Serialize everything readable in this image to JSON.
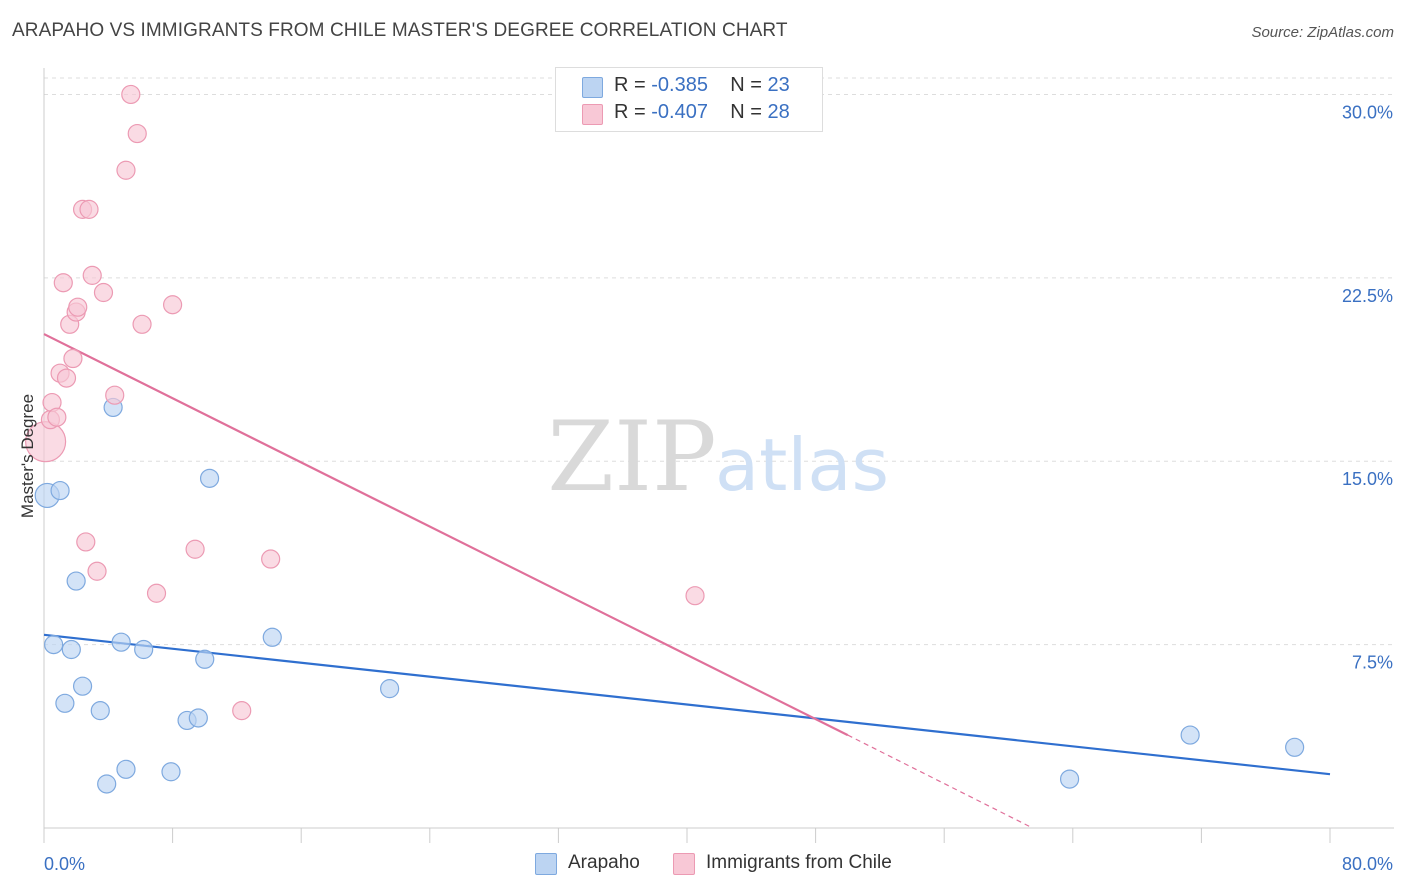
{
  "title": "ARAPAHO VS IMMIGRANTS FROM CHILE MASTER'S DEGREE CORRELATION CHART",
  "source": "Source: ZipAtlas.com",
  "watermark": {
    "zip": "ZIP",
    "atlas": "atlas"
  },
  "legend_top": [
    {
      "r_label": "R = ",
      "r_value": "-0.385",
      "n_label": "N = ",
      "n_value": "23"
    },
    {
      "r_label": "R = ",
      "r_value": "-0.407",
      "n_label": "N = ",
      "n_value": "28"
    }
  ],
  "legend_bottom": [
    "Arapaho",
    "Immigrants from Chile"
  ],
  "colors": {
    "arapaho_fill": "#bcd4f2",
    "arapaho_stroke": "#7ea9df",
    "arapaho_line": "#2f6fcf",
    "chile_fill": "#f8c8d6",
    "chile_stroke": "#ec9ab3",
    "chile_line": "#e0709a",
    "axis_text": "#3a70c2",
    "grid": "#dddddd"
  },
  "chart_data": {
    "type": "scatter",
    "title": "ARAPAHO VS IMMIGRANTS FROM CHILE MASTER'S DEGREE CORRELATION CHART",
    "xlabel": "",
    "ylabel": "Master's Degree",
    "xlim": [
      0,
      80
    ],
    "ylim": [
      0,
      31
    ],
    "x_tick_labels": [
      "0.0%",
      "80.0%"
    ],
    "y_ticks": [
      7.5,
      15.0,
      22.5,
      30.0
    ],
    "y_tick_labels": [
      "7.5%",
      "15.0%",
      "22.5%",
      "30.0%"
    ],
    "grid": true,
    "legend": "top-center",
    "series": [
      {
        "name": "Arapaho",
        "R": -0.385,
        "N": 23,
        "points": [
          {
            "x": 0.2,
            "y": 13.6,
            "big": 1
          },
          {
            "x": 1.0,
            "y": 13.8
          },
          {
            "x": 0.6,
            "y": 7.5
          },
          {
            "x": 1.7,
            "y": 7.3
          },
          {
            "x": 2.0,
            "y": 10.1
          },
          {
            "x": 2.4,
            "y": 5.8
          },
          {
            "x": 1.3,
            "y": 5.1
          },
          {
            "x": 3.5,
            "y": 4.8
          },
          {
            "x": 3.9,
            "y": 1.8
          },
          {
            "x": 4.3,
            "y": 17.2
          },
          {
            "x": 4.8,
            "y": 7.6
          },
          {
            "x": 5.1,
            "y": 2.4
          },
          {
            "x": 6.2,
            "y": 7.3
          },
          {
            "x": 7.9,
            "y": 2.3
          },
          {
            "x": 8.9,
            "y": 4.4
          },
          {
            "x": 9.6,
            "y": 4.5
          },
          {
            "x": 10.0,
            "y": 6.9
          },
          {
            "x": 10.3,
            "y": 14.3
          },
          {
            "x": 14.2,
            "y": 7.8
          },
          {
            "x": 21.5,
            "y": 5.7
          },
          {
            "x": 63.8,
            "y": 2.0
          },
          {
            "x": 71.3,
            "y": 3.8
          },
          {
            "x": 77.8,
            "y": 3.3
          }
        ],
        "trend": {
          "x0": 0,
          "y0": 7.9,
          "x1": 80,
          "y1": 2.2
        }
      },
      {
        "name": "Immigrants from Chile",
        "R": -0.407,
        "N": 28,
        "points": [
          {
            "x": 0.1,
            "y": 15.8,
            "big": 2
          },
          {
            "x": 0.4,
            "y": 16.7
          },
          {
            "x": 0.5,
            "y": 17.4
          },
          {
            "x": 0.8,
            "y": 16.8
          },
          {
            "x": 1.0,
            "y": 18.6
          },
          {
            "x": 1.2,
            "y": 22.3
          },
          {
            "x": 1.4,
            "y": 18.4
          },
          {
            "x": 1.6,
            "y": 20.6
          },
          {
            "x": 1.8,
            "y": 19.2
          },
          {
            "x": 2.0,
            "y": 21.1
          },
          {
            "x": 2.1,
            "y": 21.3
          },
          {
            "x": 2.4,
            "y": 25.3
          },
          {
            "x": 2.6,
            "y": 11.7
          },
          {
            "x": 2.8,
            "y": 25.3
          },
          {
            "x": 3.0,
            "y": 22.6
          },
          {
            "x": 3.3,
            "y": 10.5
          },
          {
            "x": 3.7,
            "y": 21.9
          },
          {
            "x": 4.4,
            "y": 17.7
          },
          {
            "x": 5.1,
            "y": 26.9
          },
          {
            "x": 5.4,
            "y": 30.0
          },
          {
            "x": 5.8,
            "y": 28.4
          },
          {
            "x": 6.1,
            "y": 20.6
          },
          {
            "x": 7.0,
            "y": 9.6
          },
          {
            "x": 8.0,
            "y": 21.4
          },
          {
            "x": 9.4,
            "y": 11.4
          },
          {
            "x": 12.3,
            "y": 4.8
          },
          {
            "x": 14.1,
            "y": 11.0
          },
          {
            "x": 40.5,
            "y": 9.5
          }
        ],
        "trend": {
          "x0": 0,
          "y0": 20.2,
          "x1": 50,
          "y1": 3.8
        },
        "trend_dashed": {
          "x0": 50,
          "y0": 3.8,
          "x1": 61.5,
          "y1": 0
        }
      }
    ]
  }
}
